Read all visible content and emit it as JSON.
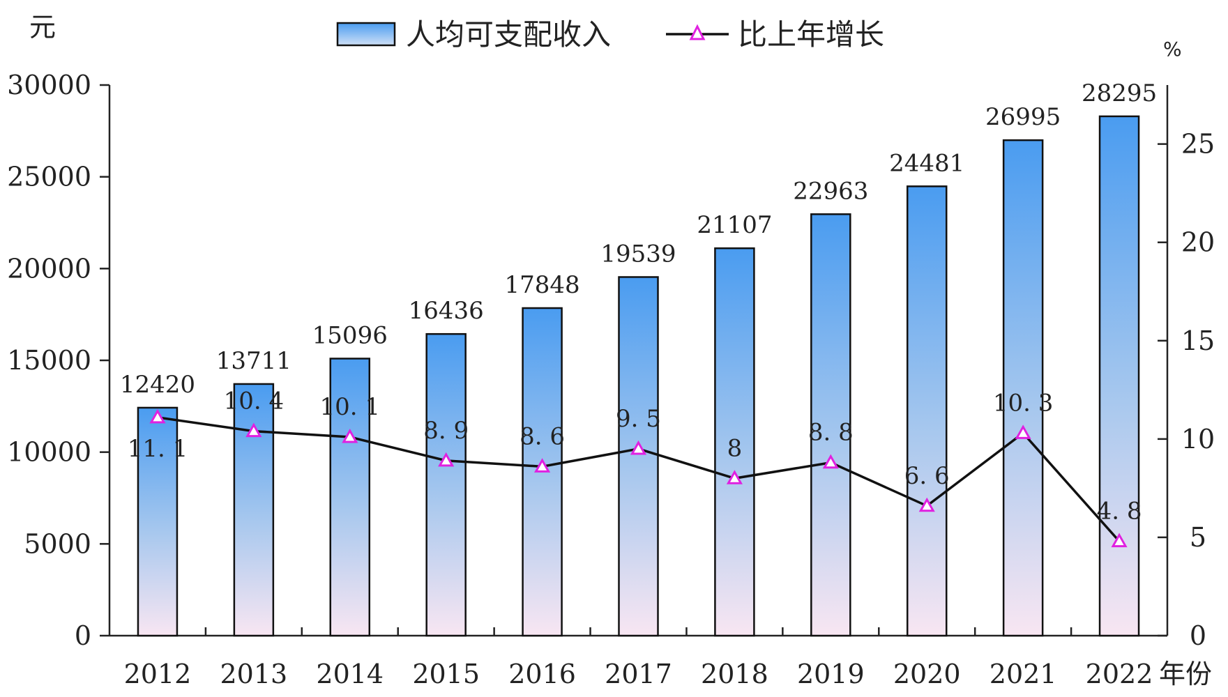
{
  "chart_data": {
    "type": "bar",
    "categories": [
      "2012",
      "2013",
      "2014",
      "2015",
      "2016",
      "2017",
      "2018",
      "2019",
      "2020",
      "2021",
      "2022"
    ],
    "series": [
      {
        "name": "人均可支配收入",
        "type": "bar",
        "axis": "left",
        "values": [
          12420,
          13711,
          15096,
          16436,
          17848,
          19539,
          21107,
          22963,
          24481,
          26995,
          28295
        ],
        "labels": [
          "12420",
          "13711",
          "15096",
          "16436",
          "17848",
          "19539",
          "21107",
          "22963",
          "24481",
          "26995",
          "28295"
        ]
      },
      {
        "name": "比上年增长",
        "type": "line",
        "axis": "right",
        "values": [
          11.1,
          10.4,
          10.1,
          8.9,
          8.6,
          9.5,
          8.0,
          8.8,
          6.6,
          10.3,
          4.8
        ],
        "labels": [
          "11. 1",
          "10. 4",
          "10. 1",
          "8. 9",
          "8. 6",
          "9. 5",
          "8",
          "8. 8",
          "6. 6",
          "10. 3",
          "4. 8"
        ]
      }
    ],
    "left_axis": {
      "unit": "元",
      "ylim": [
        0,
        30000
      ],
      "ticks": [
        "0",
        "5000",
        "10000",
        "15000",
        "20000",
        "25000",
        "30000"
      ]
    },
    "right_axis": {
      "unit": "%",
      "ylim": [
        0,
        28
      ],
      "ticks": [
        "0",
        "5",
        "10",
        "15",
        "20",
        "25"
      ]
    },
    "x_axis": {
      "unit": "年份"
    },
    "legend": {
      "position": "top-center"
    },
    "grid": false,
    "colors": {
      "bar_top": "#4a9cf0",
      "bar_bottom": "#f8e6f2",
      "line": "#111111",
      "marker": "#e020e0"
    }
  }
}
